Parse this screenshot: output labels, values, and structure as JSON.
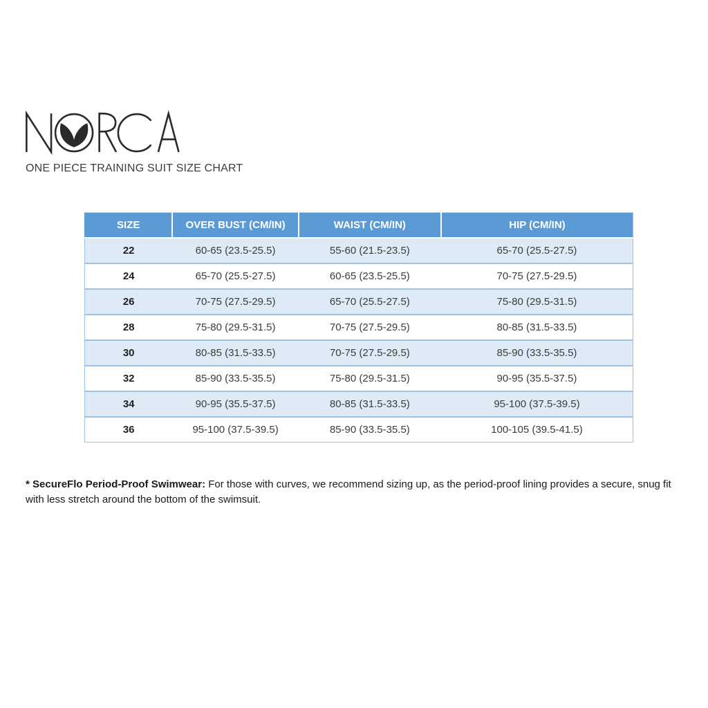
{
  "brand": {
    "name": "NORCA",
    "name_left": "N",
    "name_right": "RCA",
    "logo_icon": "whale-tail-icon",
    "subtitle": "ONE PIECE TRAINING SUIT SIZE CHART"
  },
  "table": {
    "columns": [
      "SIZE",
      "OVER BUST (CM/IN)",
      "WAIST (CM/IN)",
      "HIP (CM/IN)"
    ],
    "rows": [
      [
        "22",
        "60-65 (23.5-25.5)",
        "55-60 (21.5-23.5)",
        "65-70 (25.5-27.5)"
      ],
      [
        "24",
        "65-70 (25.5-27.5)",
        "60-65 (23.5-25.5)",
        "70-75 (27.5-29.5)"
      ],
      [
        "26",
        "70-75 (27.5-29.5)",
        "65-70 (25.5-27.5)",
        "75-80 (29.5-31.5)"
      ],
      [
        "28",
        "75-80 (29.5-31.5)",
        "70-75 (27.5-29.5)",
        "80-85 (31.5-33.5)"
      ],
      [
        "30",
        "80-85 (31.5-33.5)",
        "70-75 (27.5-29.5)",
        "85-90 (33.5-35.5)"
      ],
      [
        "32",
        "85-90 (33.5-35.5)",
        "75-80 (29.5-31.5)",
        "90-95 (35.5-37.5)"
      ],
      [
        "34",
        "90-95 (35.5-37.5)",
        "80-85 (31.5-33.5)",
        "95-100 (37.5-39.5)"
      ],
      [
        "36",
        "95-100 (37.5-39.5)",
        "85-90 (33.5-35.5)",
        "100-105 (39.5-41.5)"
      ]
    ]
  },
  "footnote": {
    "lead": "* SecureFlo Period-Proof Swimwear:",
    "body": "For those with curves, we recommend sizing up, as the period-proof lining provides a secure, snug fit with less stretch around the bottom of the swimsuit."
  },
  "colors": {
    "header_bg": "#5B9BD5",
    "header_text": "#FFFFFF",
    "row_alt_bg": "#DEEAF6",
    "row_border": "#9CC3E5",
    "body_text": "#3B3B3B",
    "size_text": "#1F1F1F",
    "logo_ink": "#2A2A2A",
    "subtitle_text": "#3C3C3C",
    "footnote_text": "#1A1A1A"
  }
}
